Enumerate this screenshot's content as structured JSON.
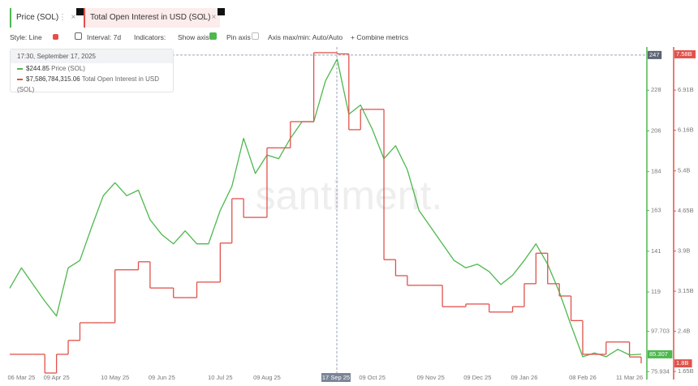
{
  "toolbar": {
    "style": "Style: Line",
    "interval": "Interval: 7d",
    "indicators": "Indicators:",
    "show_axis": "Show axis",
    "pin_axis": "Pin axis",
    "axis_minmax": "Axis max/min: Auto/Auto",
    "combine": "+ Combine metrics"
  },
  "chart_data": {
    "type": "line",
    "watermark": "santiment.",
    "tooltip": {
      "time": "17:30, September 17, 2025",
      "values": [
        "$244.85",
        "$7,586,784,315.06"
      ]
    },
    "crosshair_label": "17 Sep 25",
    "categories": [
      null,
      "06 Mar 25",
      null,
      null,
      "09 Apr 25",
      null,
      null,
      null,
      null,
      "10 May 25",
      null,
      null,
      null,
      "09 Jun 25",
      null,
      null,
      null,
      null,
      "10 Jul 25",
      null,
      null,
      null,
      "09 Aug 25",
      null,
      null,
      null,
      null,
      null,
      null,
      null,
      null,
      "09 Oct 25",
      null,
      null,
      null,
      null,
      "09 Nov 25",
      null,
      null,
      null,
      "09 Dec 25",
      null,
      null,
      null,
      "09 Jan 26",
      null,
      null,
      null,
      null,
      "08 Feb 26",
      null,
      null,
      null,
      "11 Mar 26",
      null
    ],
    "series": [
      {
        "name": "Price (SOL)",
        "color": "#4db84e",
        "values": [
          121,
          132,
          123,
          114,
          106,
          132,
          136,
          154,
          171,
          178,
          171,
          174,
          158,
          150,
          145,
          152,
          145,
          145,
          163,
          176,
          202,
          183,
          193,
          191,
          202,
          211,
          211,
          233,
          244.85,
          215,
          220,
          207,
          191,
          198,
          185,
          163,
          154,
          145,
          136,
          132,
          134,
          130,
          123,
          128,
          136,
          145,
          134,
          119,
          101,
          84,
          86,
          84,
          88,
          85,
          85.307
        ]
      },
      {
        "name": "Total Open Interest in USD (SOL)",
        "color": "#e0524b",
        "axis": "y2",
        "step": true,
        "values": [
          1970000000,
          1970000000,
          1970000000,
          1620000000,
          1970000000,
          2230000000,
          2560000000,
          2560000000,
          2560000000,
          3550000000,
          3550000000,
          3700000000,
          3210000000,
          3210000000,
          3030000000,
          3030000000,
          3320000000,
          3320000000,
          4050000000,
          4880000000,
          4530000000,
          4530000000,
          5830000000,
          5830000000,
          6320000000,
          6320000000,
          7610000000,
          7610000000,
          7586784315.06,
          6170000000,
          6550000000,
          6550000000,
          3740000000,
          3440000000,
          3260000000,
          3260000000,
          3260000000,
          2860000000,
          2860000000,
          2910000000,
          2910000000,
          2760000000,
          2760000000,
          2860000000,
          3290000000,
          3860000000,
          3290000000,
          3060000000,
          2600000000,
          1970000000,
          1970000000,
          2200000000,
          2200000000,
          1920000000,
          1800000000
        ]
      }
    ],
    "ylim": [
      73,
      250
    ],
    "yticks": [
      75.934,
      97.703,
      119,
      141,
      163,
      184,
      206,
      228
    ],
    "y2lim": [
      1544000000,
      7670000000
    ],
    "y2ticks": [
      {
        "value": 1650000000,
        "label": "1.65B"
      },
      {
        "value": 2400000000,
        "label": "2.4B"
      },
      {
        "value": 3150000000,
        "label": "3.15B"
      },
      {
        "value": 3900000000,
        "label": "3.9B"
      },
      {
        "value": 4650000000,
        "label": "4.65B"
      },
      {
        "value": 5400000000,
        "label": "5.4B"
      },
      {
        "value": 6160000000,
        "label": "6.16B"
      },
      {
        "value": 6910000000,
        "label": "6.91B"
      }
    ],
    "badges": [
      {
        "value": 247,
        "label": "247",
        "axis": "y",
        "color": "#5c6474"
      },
      {
        "value": 7580000000,
        "label": "7.58B",
        "axis": "y2",
        "color": "#e0524b"
      },
      {
        "value": 85.307,
        "label": "85.307",
        "axis": "y",
        "color": "#4db84e"
      },
      {
        "value": 1800000000,
        "label": "1.8B",
        "axis": "y2",
        "color": "#e0524b"
      }
    ]
  }
}
